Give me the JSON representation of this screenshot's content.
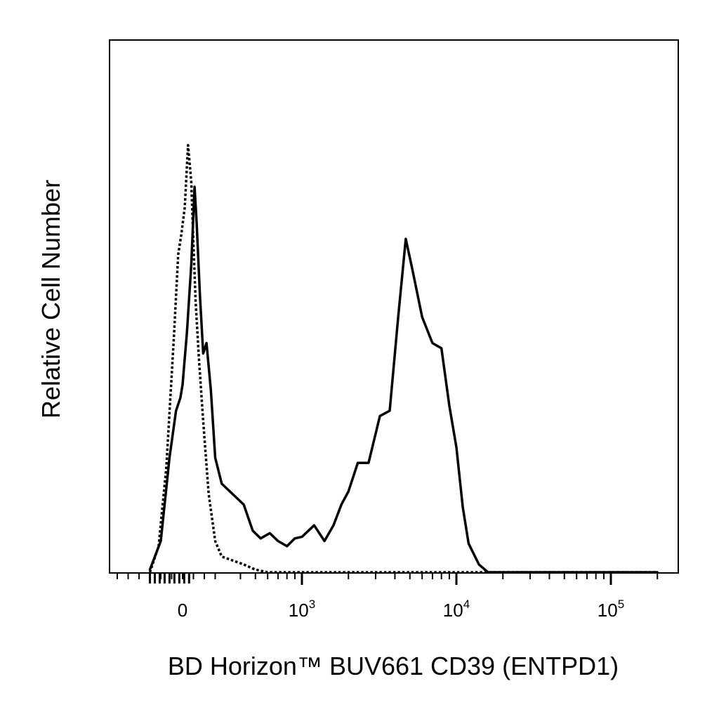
{
  "chart_data": {
    "type": "line",
    "title": "",
    "xlabel": "BD Horizon™ BUV661 CD39 (ENTPD1)",
    "ylabel": "Relative Cell Number",
    "x_scale": "biexponential",
    "x_tick_labels": [
      {
        "value": 0,
        "base": "0",
        "exp": ""
      },
      {
        "value": 1000,
        "base": "10",
        "exp": "3"
      },
      {
        "value": 10000,
        "base": "10",
        "exp": "4"
      },
      {
        "value": 100000,
        "base": "10",
        "exp": "5"
      }
    ],
    "grid": false,
    "legend": "none",
    "series": [
      {
        "style": "solid",
        "color": "#000000",
        "x": [
          -300,
          -200,
          -120,
          -60,
          -20,
          0,
          40,
          80,
          110,
          130,
          160,
          190,
          220,
          260,
          300,
          360,
          420,
          480,
          540,
          620,
          700,
          800,
          900,
          1000,
          1200,
          1400,
          1600,
          1800,
          2000,
          2300,
          2700,
          3200,
          3700,
          4200,
          4700,
          5200,
          6000,
          7000,
          8000,
          9000,
          10000,
          11000,
          12000,
          14000,
          16000,
          18000,
          20000,
          25000,
          30000,
          40000,
          55000,
          100000,
          200000
        ],
        "y": [
          0.5,
          6,
          22,
          31,
          33.5,
          36,
          46,
          59,
          74,
          67,
          53,
          42,
          44,
          35,
          22,
          17,
          13,
          8,
          6.5,
          7.5,
          6,
          5,
          6.5,
          6.8,
          9,
          6,
          9,
          13,
          15.5,
          21,
          21,
          30,
          31,
          49,
          64,
          58,
          49,
          44,
          43,
          32,
          24,
          12.5,
          5.5,
          1.5,
          0,
          0,
          0,
          0,
          0,
          0,
          0,
          0,
          0
        ]
      },
      {
        "style": "dotted",
        "color": "#000000",
        "x": [
          -300,
          -220,
          -150,
          -80,
          -40,
          -10,
          20,
          50,
          80,
          100,
          120,
          150,
          190,
          240,
          300,
          360,
          420,
          500,
          600,
          700,
          850,
          1000,
          10000,
          100000,
          200000
        ],
        "y": [
          0,
          5,
          20,
          45,
          61,
          65,
          70,
          82,
          75,
          63,
          52,
          41,
          29,
          15,
          6,
          3,
          1.5,
          0.5,
          0,
          0,
          0,
          0,
          0,
          0,
          0
        ]
      }
    ]
  }
}
